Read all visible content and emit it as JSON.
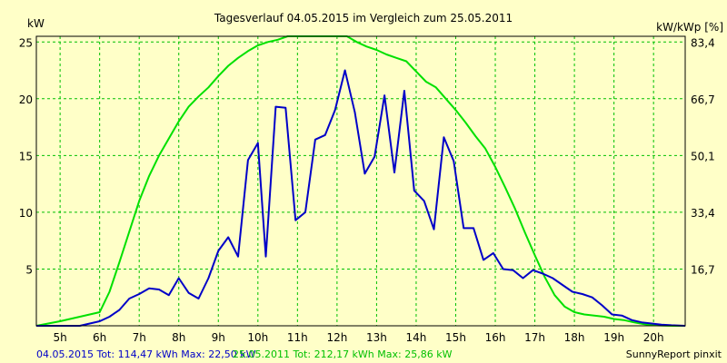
{
  "chart_data": {
    "type": "line",
    "title": "Tagesverlauf 04.05.2015 im Vergleich zum 25.05.2011",
    "ylabel_left": "kW",
    "ylabel_right": "kW/kWp [%]",
    "xlim": [
      4.4,
      20.8
    ],
    "ylim": [
      0,
      25.5
    ],
    "x_ticks": [
      5,
      6,
      7,
      8,
      9,
      10,
      11,
      12,
      13,
      14,
      15,
      16,
      17,
      18,
      19,
      20
    ],
    "x_tick_labels": [
      "5h",
      "6h",
      "7h",
      "8h",
      "9h",
      "10h",
      "11h",
      "12h",
      "13h",
      "14h",
      "15h",
      "16h",
      "17h",
      "18h",
      "19h",
      "20h"
    ],
    "y_ticks_left": [
      5,
      10,
      15,
      20,
      25
    ],
    "y_tick_labels_left": [
      "5",
      "10",
      "15",
      "20",
      "25"
    ],
    "y_ticks_right_pos": [
      5,
      10,
      15,
      20,
      25
    ],
    "y_tick_labels_right": [
      "16,7",
      "33,4",
      "50,1",
      "66,7",
      "83,4"
    ],
    "grid": true,
    "series": [
      {
        "name": "04.05.2015",
        "color": "#0000c8",
        "x": [
          4.4,
          5.5,
          5.75,
          6.0,
          6.25,
          6.5,
          6.75,
          7.0,
          7.25,
          7.5,
          7.75,
          8.0,
          8.25,
          8.5,
          8.75,
          9.0,
          9.25,
          9.5,
          9.75,
          10.0,
          10.2,
          10.45,
          10.7,
          10.95,
          11.2,
          11.45,
          11.7,
          11.95,
          12.2,
          12.45,
          12.7,
          12.95,
          13.2,
          13.45,
          13.7,
          13.95,
          14.2,
          14.45,
          14.7,
          14.95,
          15.2,
          15.45,
          15.7,
          15.95,
          16.2,
          16.45,
          16.7,
          16.95,
          17.2,
          17.45,
          17.7,
          17.95,
          18.2,
          18.45,
          18.7,
          18.95,
          19.2,
          19.45,
          19.7,
          19.95,
          20.2,
          20.45,
          20.8
        ],
        "y": [
          0,
          0,
          0.2,
          0.4,
          0.8,
          1.4,
          2.4,
          2.8,
          3.3,
          3.2,
          2.7,
          4.2,
          2.9,
          2.4,
          4.2,
          6.6,
          7.8,
          6.1,
          14.6,
          16.1,
          6.1,
          19.3,
          19.2,
          9.3,
          10.0,
          16.4,
          16.8,
          19.0,
          22.5,
          18.8,
          13.4,
          14.9,
          20.3,
          13.5,
          20.7,
          11.9,
          11.0,
          8.5,
          16.6,
          14.5,
          8.6,
          8.6,
          5.8,
          6.4,
          5.0,
          4.9,
          4.2,
          4.9,
          4.6,
          4.2,
          3.6,
          3.0,
          2.8,
          2.5,
          1.8,
          1.0,
          0.9,
          0.5,
          0.3,
          0.2,
          0.1,
          0.05,
          0
        ]
      },
      {
        "name": "25.05.2011",
        "color": "#00e000",
        "x": [
          4.4,
          5.0,
          5.5,
          6.0,
          6.25,
          6.5,
          6.75,
          7.0,
          7.25,
          7.5,
          7.75,
          8.0,
          8.25,
          8.5,
          8.75,
          9.0,
          9.25,
          9.5,
          9.75,
          10.0,
          10.25,
          10.5,
          10.75,
          11.0,
          11.25,
          11.5,
          11.75,
          12.0,
          12.25,
          12.5,
          12.75,
          13.0,
          13.25,
          13.5,
          13.75,
          14.0,
          14.25,
          14.5,
          14.75,
          15.0,
          15.25,
          15.5,
          15.75,
          16.0,
          16.25,
          16.5,
          16.75,
          17.0,
          17.25,
          17.5,
          17.75,
          18.0,
          18.25,
          18.5,
          18.75,
          19.0,
          19.25,
          19.5,
          19.75,
          20.0,
          20.25,
          20.5,
          20.8
        ],
        "y": [
          0,
          0.4,
          0.8,
          1.2,
          3.0,
          5.6,
          8.3,
          11.0,
          13.2,
          15.0,
          16.5,
          18.0,
          19.3,
          20.2,
          21.0,
          22.0,
          22.9,
          23.6,
          24.2,
          24.7,
          25.0,
          25.2,
          25.5,
          25.8,
          25.8,
          25.9,
          25.9,
          25.86,
          25.5,
          25.0,
          24.6,
          24.3,
          23.9,
          23.6,
          23.3,
          22.4,
          21.5,
          21.0,
          20.0,
          19.0,
          17.9,
          16.7,
          15.6,
          14.0,
          12.2,
          10.3,
          8.2,
          6.2,
          4.3,
          2.7,
          1.7,
          1.2,
          1.0,
          0.9,
          0.8,
          0.6,
          0.5,
          0.3,
          0.15,
          0.05,
          0.02,
          0,
          0
        ]
      }
    ]
  },
  "footer": {
    "left_series1": "04.05.2015 Tot: 114,47 kWh Max: 22,50 kW",
    "left_series2": "25.05.2011 Tot: 212,17 kWh Max: 25,86 kW",
    "right": "SunnyReport pinxit"
  },
  "colors": {
    "background": "#ffffc8",
    "grid": "#00c000",
    "series1": "#0000c8",
    "series2": "#00e000"
  }
}
